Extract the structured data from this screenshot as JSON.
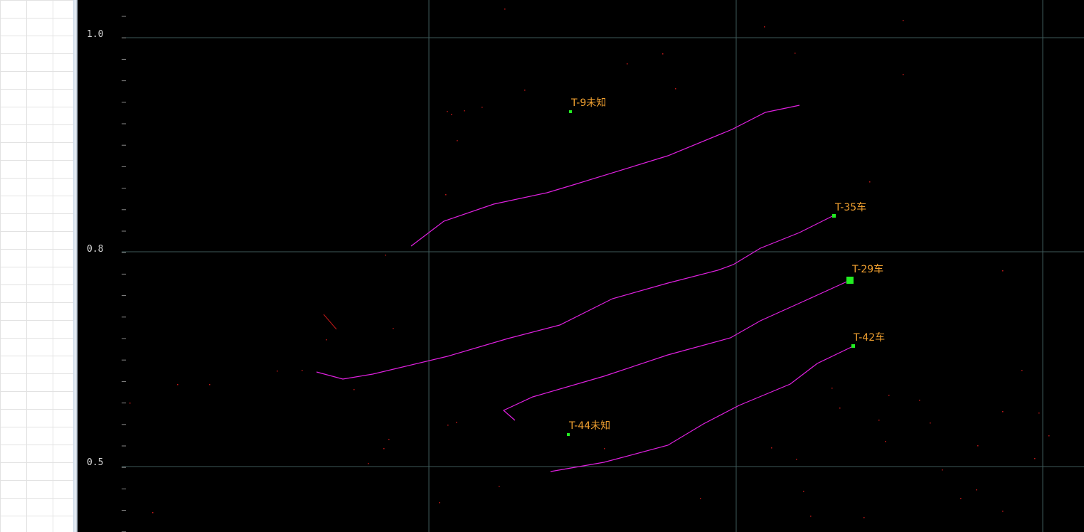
{
  "y_axis": {
    "ticks": [
      {
        "value": 1.0,
        "label": "1.0"
      },
      {
        "value": 0.8,
        "label": "0.8"
      },
      {
        "value": 0.5,
        "label": "0.5"
      }
    ]
  },
  "targets": [
    {
      "id": "T-9",
      "label": "T-9未知",
      "type": "未知"
    },
    {
      "id": "T-35",
      "label": "T-35车",
      "type": "车"
    },
    {
      "id": "T-29",
      "label": "T-29车",
      "type": "车",
      "selected": true
    },
    {
      "id": "T-42",
      "label": "T-42车",
      "type": "车"
    },
    {
      "id": "T-44",
      "label": "T-44未知",
      "type": "未知"
    }
  ],
  "colors": {
    "background": "#000000",
    "grid": "#3e5a5a",
    "track": "#e020e0",
    "target_marker": "#22ee22",
    "target_label": "#f0a030",
    "axis_label": "#d8d8d8",
    "noise": "#c01818"
  }
}
